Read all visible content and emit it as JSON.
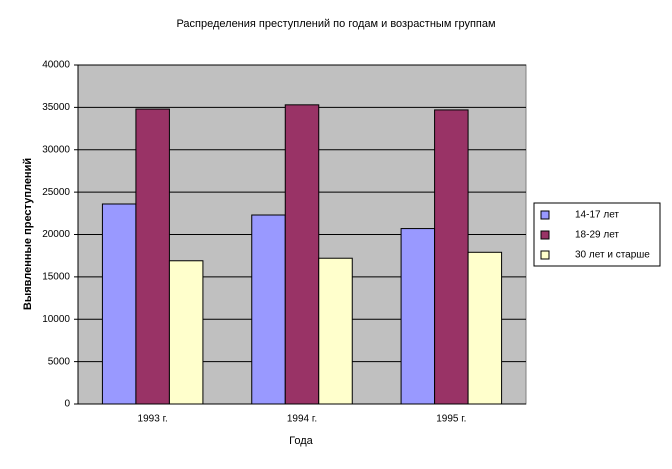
{
  "chart_data": {
    "type": "bar",
    "title": "Распределения преступлений по годам и возрастным группам",
    "x_label": "Года",
    "y_label": "Выявленные преступлений",
    "categories": [
      "1993 г.",
      "1994 г.",
      "1995 г."
    ],
    "series": [
      {
        "name": "14-17 лет",
        "color": "#9999ff",
        "values": [
          23600,
          22300,
          20700
        ]
      },
      {
        "name": "18-29 лет",
        "color": "#993366",
        "values": [
          34800,
          35300,
          34700
        ]
      },
      {
        "name": "30 лет и старше",
        "color": "#ffffcc",
        "values": [
          16900,
          17200,
          17900
        ]
      }
    ],
    "ylim": [
      0,
      40000
    ],
    "yticks": [
      0,
      5000,
      10000,
      15000,
      20000,
      25000,
      30000,
      35000,
      40000
    ],
    "grid": true,
    "legend": "right"
  }
}
